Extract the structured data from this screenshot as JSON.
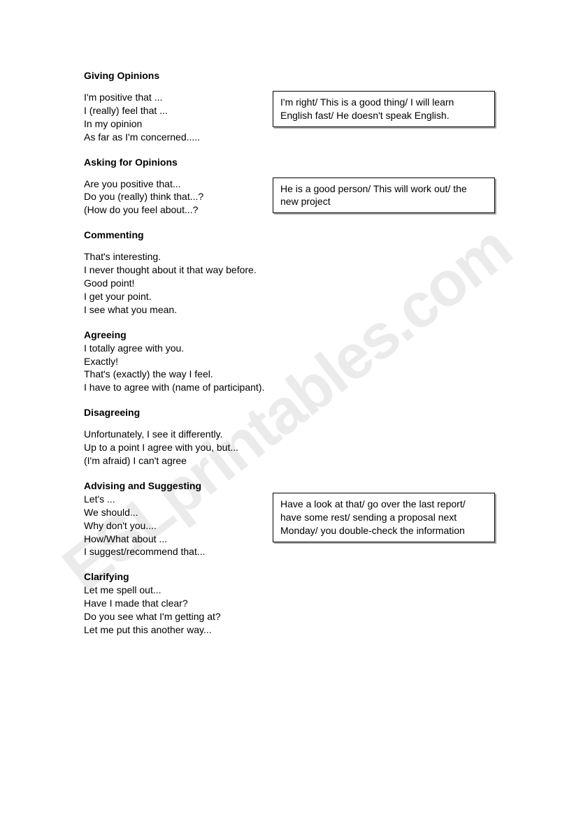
{
  "watermark": "ESLprintables.com",
  "sections": {
    "giving_opinions": {
      "heading": "Giving Opinions",
      "phrases": [
        "I'm positive that ...",
        "I (really) feel that ...",
        "In my opinion",
        "As far as I'm concerned....."
      ],
      "example": "I'm right/  This is a good thing/ I will learn English fast/ He doesn't speak English."
    },
    "asking_opinions": {
      "heading": "Asking for Opinions",
      "phrases": [
        "Are you positive that...",
        "Do you (really) think that...?",
        "(How do you feel about...?"
      ],
      "example": "He is a good person/ This will work out/ the new project"
    },
    "commenting": {
      "heading": "Commenting",
      "phrases": [
        "That's interesting.",
        "I never thought about it that way before.",
        "Good point!",
        "I get your point.",
        "I see what you mean."
      ]
    },
    "agreeing": {
      "heading": "Agreeing",
      "phrases": [
        "I totally agree with you.",
        "Exactly!",
        "That's (exactly) the way I feel.",
        "I have to agree with (name of participant)."
      ]
    },
    "disagreeing": {
      "heading": "Disagreeing",
      "phrases": [
        "Unfortunately, I see it differently.",
        "Up to a point I agree with you, but...",
        "(I'm afraid) I can't agree"
      ]
    },
    "advising": {
      "heading": "Advising and Suggesting",
      "phrases": [
        "Let's ...",
        "We should...",
        "Why don't you....",
        "How/What about ...",
        "I suggest/recommend that..."
      ],
      "example": "Have a look at that/ go over the last report/ have some rest/  sending a proposal next Monday/ you double-check the information"
    },
    "clarifying": {
      "heading": "Clarifying",
      "phrases": [
        "Let me spell out...",
        "Have I made that clear?",
        "Do you see what I'm getting at?",
        "Let me put this another way..."
      ]
    }
  }
}
